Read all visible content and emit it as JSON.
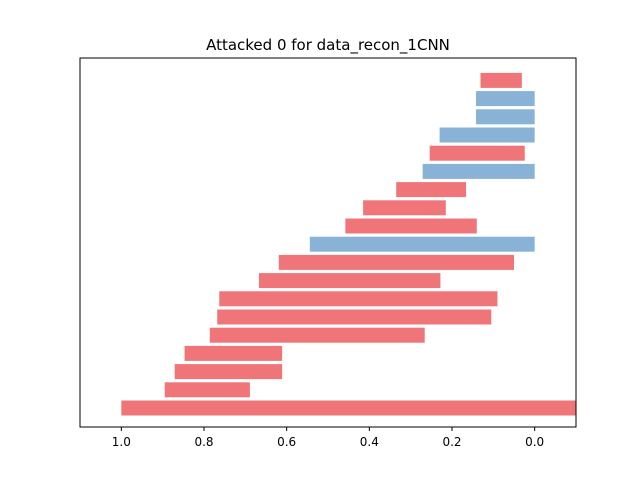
{
  "chart_data": {
    "type": "bar",
    "orientation": "horizontal-floating",
    "title": "Attacked 0 for data_recon_1CNN",
    "xlabel": "",
    "ylabel": "",
    "x_axis_inverted": true,
    "xlim": [
      1.1,
      -0.1
    ],
    "xticks": [
      1.0,
      0.8,
      0.6,
      0.4,
      0.2,
      0.0
    ],
    "xtick_labels": [
      "1.0",
      "0.8",
      "0.6",
      "0.4",
      "0.2",
      "0.0"
    ],
    "yticks_visible": false,
    "grid": false,
    "legend": "none",
    "colors": {
      "red": "#f07578",
      "blue": "#88b2d6"
    },
    "bars": [
      {
        "start": 1.0,
        "end": -0.1,
        "color": "red"
      },
      {
        "start": 0.895,
        "end": 0.689,
        "color": "red"
      },
      {
        "start": 0.871,
        "end": 0.611,
        "color": "red"
      },
      {
        "start": 0.847,
        "end": 0.611,
        "color": "red"
      },
      {
        "start": 0.786,
        "end": 0.266,
        "color": "red"
      },
      {
        "start": 0.768,
        "end": 0.105,
        "color": "red"
      },
      {
        "start": 0.763,
        "end": 0.09,
        "color": "red"
      },
      {
        "start": 0.667,
        "end": 0.228,
        "color": "red"
      },
      {
        "start": 0.619,
        "end": 0.05,
        "color": "red"
      },
      {
        "start": 0.544,
        "end": 0.0,
        "color": "blue"
      },
      {
        "start": 0.458,
        "end": 0.14,
        "color": "red"
      },
      {
        "start": 0.415,
        "end": 0.215,
        "color": "red"
      },
      {
        "start": 0.335,
        "end": 0.166,
        "color": "red"
      },
      {
        "start": 0.271,
        "end": 0.0,
        "color": "blue"
      },
      {
        "start": 0.254,
        "end": 0.024,
        "color": "red"
      },
      {
        "start": 0.23,
        "end": 0.0,
        "color": "blue"
      },
      {
        "start": 0.142,
        "end": 0.0,
        "color": "blue"
      },
      {
        "start": 0.142,
        "end": 0.0,
        "color": "blue"
      },
      {
        "start": 0.131,
        "end": 0.031,
        "color": "red"
      }
    ]
  }
}
